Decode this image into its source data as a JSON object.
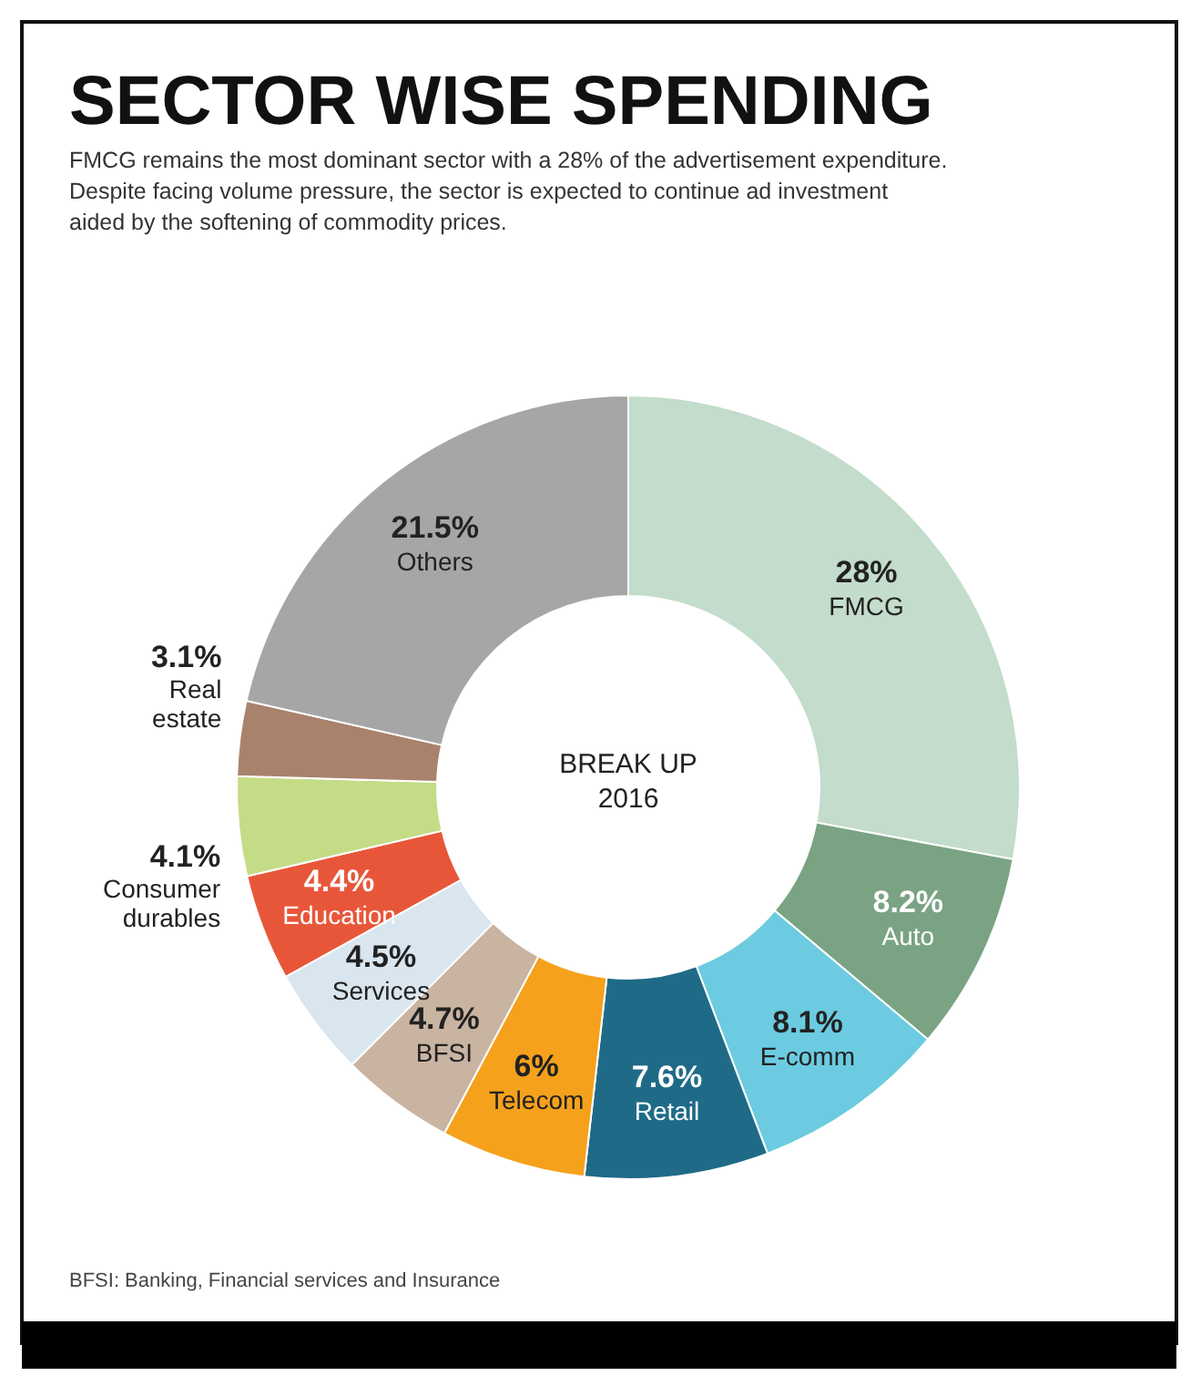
{
  "chart_data": {
    "type": "donut",
    "title": "SECTOR WISE SPENDING",
    "subtitle": "FMCG remains the most dominant sector with a 28% of the advertisement expenditure. Despite facing volume pressure, the sector is expected to continue ad investment aided by the softening of commodity prices.",
    "categories": [
      "FMCG",
      "Auto",
      "E-comm",
      "Retail",
      "Telecom",
      "BFSI",
      "Services",
      "Education",
      "Consumer durables",
      "Real estate",
      "Others"
    ],
    "values": [
      28,
      8.2,
      8.1,
      7.6,
      6,
      4.7,
      4.5,
      4.4,
      4.1,
      3.1,
      21.5
    ],
    "value_labels": [
      "28%",
      "8.2%",
      "8.1%",
      "7.6%",
      "6%",
      "4.7%",
      "4.5%",
      "4.4%",
      "4.1%",
      "3.1%",
      "21.5%"
    ],
    "colors": [
      "#c3dccb",
      "#7aa383",
      "#6ccbe0",
      "#1f6b87",
      "#f5a11c",
      "#c9b3a1",
      "#d9e6ef",
      "#e8563a",
      "#c5dc86",
      "#a9826c",
      "#a6a6a6"
    ],
    "annotations": [
      "BREAK UP 2016",
      "BFSI: Banking, Financial services and Insurance"
    ]
  }
}
